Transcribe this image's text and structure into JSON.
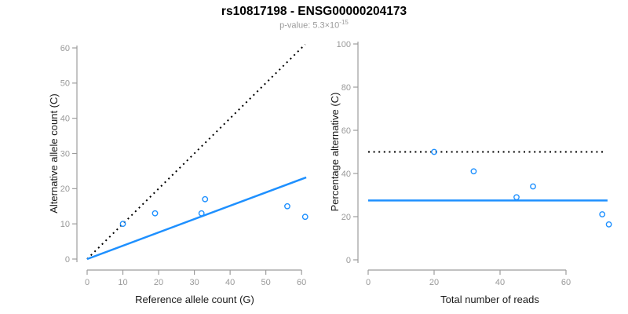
{
  "header": {
    "title": "rs10817198 - ENSG00000204173",
    "subtitle_main": "p-value: 5.3×10",
    "subtitle_exponent": "-15"
  },
  "colors": {
    "accent": "#1E90FF",
    "axis": "#9c9c9c",
    "tick_label": "#999999",
    "text": "#1a1a1a",
    "title": "#000000",
    "subtitle": "#9a9a9a",
    "dotted": "#000000"
  },
  "chart_data": [
    {
      "type": "scatter",
      "name": "allele-counts-plot",
      "xlabel": "Reference allele count (G)",
      "ylabel": "Alternative allele count (C)",
      "xlim": [
        0,
        61.5
      ],
      "ylim": [
        0,
        61
      ],
      "xticks": [
        0,
        10,
        20,
        30,
        40,
        50,
        60
      ],
      "yticks": [
        0,
        10,
        20,
        30,
        40,
        50,
        60
      ],
      "grid": false,
      "points": [
        [
          10,
          10
        ],
        [
          19,
          13
        ],
        [
          32,
          13
        ],
        [
          33,
          17
        ],
        [
          56,
          15
        ],
        [
          61,
          12
        ]
      ],
      "lines": [
        {
          "name": "identity-line",
          "style": "dotted",
          "color": "#000000",
          "x1": 0,
          "y1": 0,
          "x2": 61,
          "y2": 61
        },
        {
          "name": "regression-line",
          "style": "solid",
          "color": "#1E90FF",
          "x1": 0,
          "y1": 0,
          "x2": 61.3,
          "y2": 23.2
        }
      ]
    },
    {
      "type": "scatter",
      "name": "percentage-alternative-plot",
      "xlabel": "Total number of reads",
      "ylabel": "Percentage alternative (C)",
      "xlim": [
        0,
        73
      ],
      "ylim": [
        0,
        100
      ],
      "xticks": [
        0,
        20,
        40,
        60
      ],
      "yticks": [
        0,
        20,
        40,
        60,
        80,
        100
      ],
      "grid": false,
      "points": [
        [
          20,
          50
        ],
        [
          32,
          41
        ],
        [
          45,
          29
        ],
        [
          50,
          34
        ],
        [
          71,
          21.1
        ],
        [
          73,
          16.4
        ]
      ],
      "lines": [
        {
          "name": "fifty-percent-reference-line",
          "style": "dotted",
          "color": "#000000",
          "x1": 0,
          "y1": 50,
          "x2": 71.2,
          "y2": 50
        },
        {
          "name": "mean-percentage-line",
          "style": "solid",
          "color": "#1E90FF",
          "x1": 0,
          "y1": 27.5,
          "x2": 72.6,
          "y2": 27.5
        }
      ]
    }
  ]
}
